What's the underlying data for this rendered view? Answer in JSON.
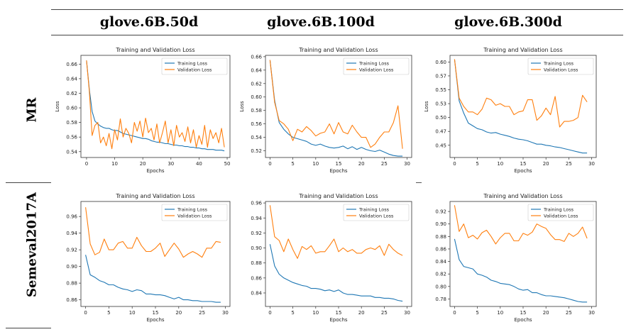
{
  "columns": [
    "glove.6B.50d",
    "glove.6B.100d",
    "glove.6B.300d"
  ],
  "rows": [
    "MR",
    "Semeval2017A"
  ],
  "colors": {
    "training": "#1f77b4",
    "validation": "#ff7f0e"
  },
  "chart_data": [
    {
      "type": "line",
      "title": "Training and Validation Loss",
      "xlabel": "Epochs",
      "ylabel": "Loss",
      "xlim": [
        -2,
        51
      ],
      "ylim": [
        0.532,
        0.672
      ],
      "xticks": [
        0,
        10,
        20,
        30,
        40,
        50
      ],
      "yticks": [
        0.54,
        0.56,
        0.58,
        0.6,
        0.62,
        0.64,
        0.66
      ],
      "legend": "top-right",
      "series": [
        {
          "name": "Training Loss",
          "values": [
            0.665,
            0.625,
            0.595,
            0.582,
            0.578,
            0.575,
            0.573,
            0.572,
            0.572,
            0.57,
            0.569,
            0.569,
            0.567,
            0.565,
            0.564,
            0.563,
            0.562,
            0.561,
            0.56,
            0.559,
            0.558,
            0.558,
            0.557,
            0.555,
            0.554,
            0.553,
            0.553,
            0.552,
            0.551,
            0.551,
            0.55,
            0.549,
            0.549,
            0.548,
            0.548,
            0.547,
            0.547,
            0.546,
            0.546,
            0.545,
            0.545,
            0.544,
            0.544,
            0.543,
            0.543,
            0.543,
            0.542,
            0.542,
            0.542,
            0.541
          ]
        },
        {
          "name": "Validation Loss",
          "values": [
            0.665,
            0.622,
            0.562,
            0.576,
            0.58,
            0.552,
            0.56,
            0.548,
            0.565,
            0.544,
            0.57,
            0.556,
            0.585,
            0.56,
            0.572,
            0.565,
            0.552,
            0.58,
            0.568,
            0.582,
            0.56,
            0.586,
            0.566,
            0.572,
            0.556,
            0.578,
            0.552,
            0.566,
            0.582,
            0.552,
            0.57,
            0.548,
            0.576,
            0.56,
            0.566,
            0.554,
            0.574,
            0.552,
            0.57,
            0.546,
            0.562,
            0.55,
            0.576,
            0.546,
            0.57,
            0.558,
            0.566,
            0.552,
            0.572,
            0.546
          ]
        }
      ]
    },
    {
      "type": "line",
      "title": "Training and Validation Loss",
      "xlabel": "Epochs",
      "ylabel": "Loss",
      "xlim": [
        -1,
        31
      ],
      "ylim": [
        0.51,
        0.662
      ],
      "xticks": [
        0,
        5,
        10,
        15,
        20,
        25,
        30
      ],
      "yticks": [
        0.52,
        0.54,
        0.56,
        0.58,
        0.6,
        0.62,
        0.64,
        0.66
      ],
      "legend": "top-right",
      "series": [
        {
          "name": "Training Loss",
          "values": [
            0.655,
            0.595,
            0.562,
            0.552,
            0.545,
            0.54,
            0.538,
            0.536,
            0.534,
            0.53,
            0.528,
            0.53,
            0.527,
            0.525,
            0.524,
            0.525,
            0.527,
            0.523,
            0.526,
            0.522,
            0.525,
            0.522,
            0.52,
            0.519,
            0.521,
            0.518,
            0.515,
            0.513,
            0.512,
            0.512
          ]
        },
        {
          "name": "Validation Loss",
          "values": [
            0.655,
            0.592,
            0.565,
            0.56,
            0.552,
            0.535,
            0.552,
            0.548,
            0.556,
            0.55,
            0.542,
            0.546,
            0.548,
            0.56,
            0.545,
            0.562,
            0.548,
            0.545,
            0.558,
            0.548,
            0.54,
            0.54,
            0.525,
            0.53,
            0.54,
            0.548,
            0.548,
            0.562,
            0.587,
            0.523
          ]
        }
      ]
    },
    {
      "type": "line",
      "title": "Training and Validation Loss",
      "xlabel": "Epochs",
      "ylabel": "Loss",
      "xlim": [
        -1,
        31
      ],
      "ylim": [
        0.428,
        0.612
      ],
      "xticks": [
        0,
        5,
        10,
        15,
        20,
        25,
        30
      ],
      "yticks": [
        0.45,
        0.475,
        0.5,
        0.525,
        0.55,
        0.575,
        0.6
      ],
      "legend": "top-right",
      "series": [
        {
          "name": "Training Loss",
          "values": [
            0.605,
            0.53,
            0.508,
            0.49,
            0.485,
            0.48,
            0.478,
            0.474,
            0.472,
            0.473,
            0.47,
            0.468,
            0.466,
            0.463,
            0.461,
            0.46,
            0.458,
            0.455,
            0.452,
            0.452,
            0.45,
            0.449,
            0.447,
            0.446,
            0.444,
            0.442,
            0.44,
            0.438,
            0.436,
            0.436
          ]
        },
        {
          "name": "Validation Loss",
          "values": [
            0.605,
            0.535,
            0.52,
            0.51,
            0.51,
            0.505,
            0.515,
            0.535,
            0.532,
            0.522,
            0.525,
            0.52,
            0.52,
            0.505,
            0.51,
            0.512,
            0.532,
            0.532,
            0.495,
            0.503,
            0.517,
            0.505,
            0.538,
            0.483,
            0.493,
            0.493,
            0.495,
            0.5,
            0.54,
            0.528
          ]
        }
      ]
    },
    {
      "type": "line",
      "title": "Training and Validation Loss",
      "xlabel": "Epochs",
      "ylabel": "",
      "xlim": [
        -1,
        31
      ],
      "ylim": [
        0.852,
        0.978
      ],
      "xticks": [
        0,
        5,
        10,
        15,
        20,
        25,
        30
      ],
      "yticks": [
        0.86,
        0.88,
        0.9,
        0.92,
        0.94,
        0.96
      ],
      "legend": "top-right",
      "series": [
        {
          "name": "Training Loss",
          "values": [
            0.914,
            0.89,
            0.887,
            0.883,
            0.881,
            0.878,
            0.878,
            0.875,
            0.873,
            0.872,
            0.87,
            0.872,
            0.871,
            0.867,
            0.867,
            0.866,
            0.866,
            0.865,
            0.863,
            0.861,
            0.863,
            0.86,
            0.86,
            0.859,
            0.859,
            0.858,
            0.858,
            0.858,
            0.857,
            0.857
          ]
        },
        {
          "name": "Validation Loss",
          "values": [
            0.971,
            0.927,
            0.914,
            0.917,
            0.933,
            0.92,
            0.92,
            0.928,
            0.93,
            0.922,
            0.922,
            0.935,
            0.925,
            0.918,
            0.918,
            0.922,
            0.928,
            0.912,
            0.92,
            0.928,
            0.921,
            0.911,
            0.915,
            0.918,
            0.915,
            0.911,
            0.922,
            0.922,
            0.93,
            0.929
          ]
        }
      ]
    },
    {
      "type": "line",
      "title": "Training and Validation Loss",
      "xlabel": "Epochs",
      "ylabel": "",
      "xlim": [
        -1,
        31
      ],
      "ylim": [
        0.822,
        0.962
      ],
      "xticks": [
        0,
        5,
        10,
        15,
        20,
        25,
        30
      ],
      "yticks": [
        0.84,
        0.86,
        0.88,
        0.9,
        0.92,
        0.94,
        0.96
      ],
      "legend": "top-right",
      "series": [
        {
          "name": "Training Loss",
          "values": [
            0.905,
            0.876,
            0.865,
            0.86,
            0.857,
            0.854,
            0.852,
            0.85,
            0.849,
            0.846,
            0.846,
            0.845,
            0.843,
            0.844,
            0.842,
            0.844,
            0.84,
            0.838,
            0.838,
            0.837,
            0.836,
            0.836,
            0.836,
            0.834,
            0.834,
            0.833,
            0.833,
            0.832,
            0.83,
            0.829
          ]
        },
        {
          "name": "Validation Loss",
          "values": [
            0.957,
            0.915,
            0.91,
            0.895,
            0.912,
            0.898,
            0.886,
            0.902,
            0.898,
            0.903,
            0.893,
            0.895,
            0.895,
            0.903,
            0.912,
            0.895,
            0.9,
            0.895,
            0.898,
            0.893,
            0.893,
            0.898,
            0.9,
            0.898,
            0.903,
            0.89,
            0.905,
            0.898,
            0.893,
            0.89
          ]
        }
      ]
    },
    {
      "type": "line",
      "title": "Training and Validation Loss",
      "xlabel": "Epochs",
      "ylabel": "",
      "xlim": [
        -1,
        31
      ],
      "ylim": [
        0.768,
        0.936
      ],
      "xticks": [
        0,
        5,
        10,
        15,
        20,
        25,
        30
      ],
      "yticks": [
        0.78,
        0.8,
        0.82,
        0.84,
        0.86,
        0.88,
        0.9,
        0.92
      ],
      "legend": "top-right",
      "series": [
        {
          "name": "Training Loss",
          "values": [
            0.876,
            0.843,
            0.832,
            0.83,
            0.828,
            0.82,
            0.818,
            0.815,
            0.81,
            0.808,
            0.805,
            0.804,
            0.803,
            0.8,
            0.796,
            0.794,
            0.795,
            0.79,
            0.79,
            0.787,
            0.785,
            0.785,
            0.784,
            0.783,
            0.782,
            0.78,
            0.778,
            0.776,
            0.775,
            0.775
          ]
        },
        {
          "name": "Validation Loss",
          "values": [
            0.93,
            0.888,
            0.9,
            0.878,
            0.882,
            0.876,
            0.886,
            0.89,
            0.88,
            0.868,
            0.878,
            0.885,
            0.885,
            0.873,
            0.873,
            0.885,
            0.882,
            0.887,
            0.9,
            0.896,
            0.893,
            0.883,
            0.875,
            0.875,
            0.872,
            0.885,
            0.88,
            0.885,
            0.895,
            0.877
          ]
        }
      ]
    }
  ]
}
